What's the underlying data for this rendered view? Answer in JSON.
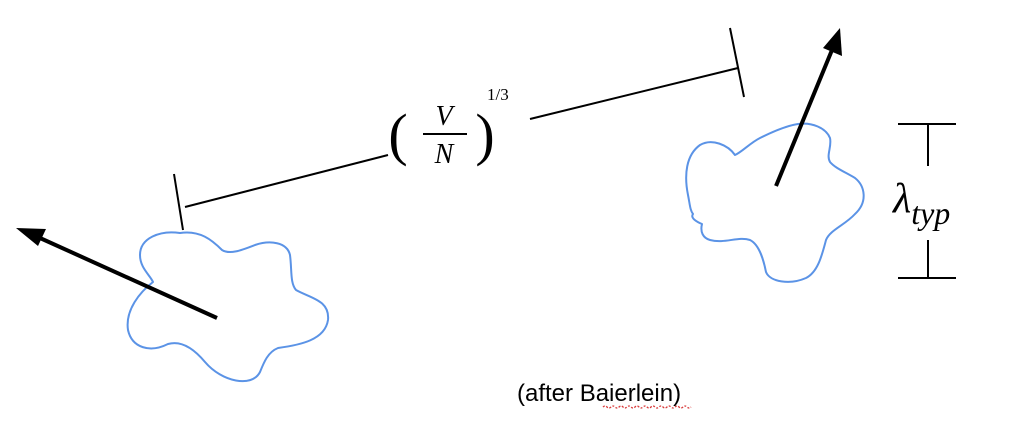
{
  "separation_label": {
    "numerator": "V",
    "denominator": "N",
    "exponent": "1/3"
  },
  "wavelength_label": {
    "symbol": "λ",
    "subscript": "typ"
  },
  "credit": {
    "prefix": "(after ",
    "name": "Baierlein",
    "suffix": ")"
  },
  "colors": {
    "blob_stroke": "#5b93e6",
    "line": "#000000",
    "spellcheck_underline": "#d83b3b"
  }
}
